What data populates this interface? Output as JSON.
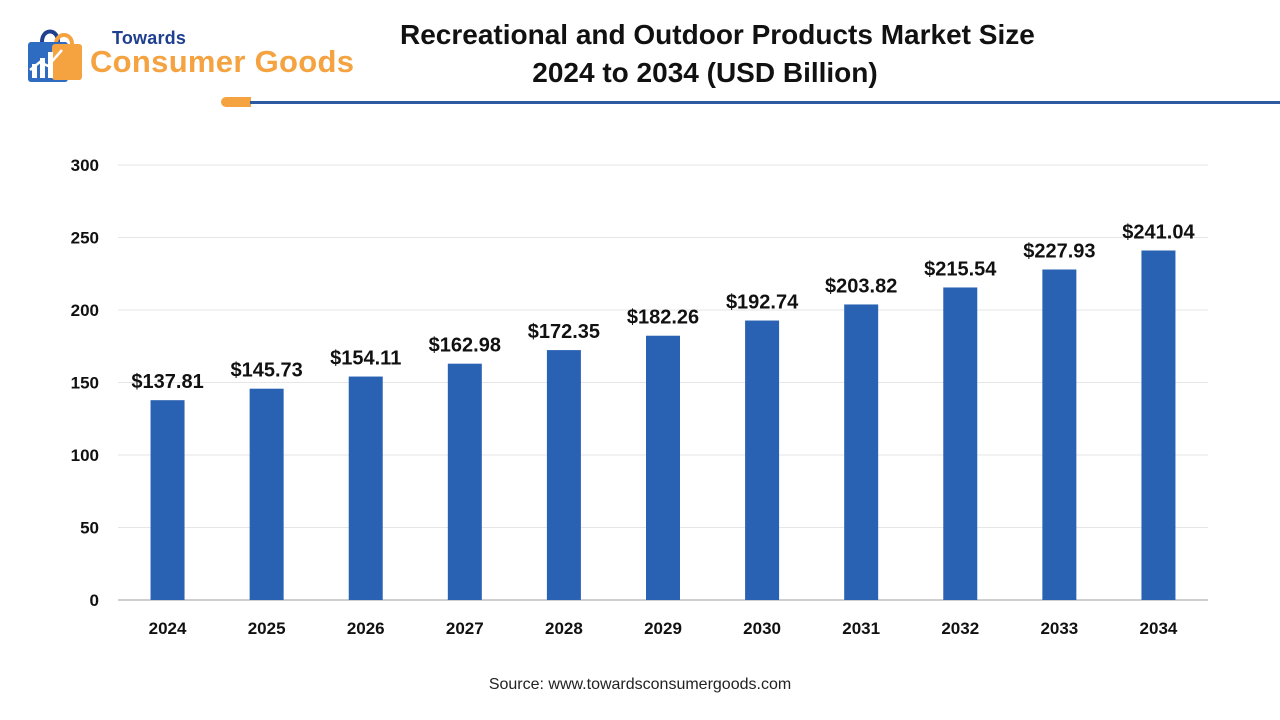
{
  "brand": {
    "top": "Towards",
    "main": "Consumer Goods",
    "icon": "shopping-bag-icon",
    "colors": {
      "blue": "#1f3f8f",
      "orange": "#f4a340",
      "bag": "#2d6cc0"
    }
  },
  "header": {
    "title_line1": "Recreational and Outdoor Products Market Size",
    "title_line2": "2024 to 2034  (USD Billion)",
    "rule_color": "#2c5aa0",
    "tab_color": "#f4a340"
  },
  "chart_data": {
    "type": "bar",
    "title": "Recreational and Outdoor Products Market Size 2024 to 2034  (USD Billion)",
    "xlabel": "",
    "ylabel": "",
    "categories": [
      "2024",
      "2025",
      "2026",
      "2027",
      "2028",
      "2029",
      "2030",
      "2031",
      "2032",
      "2033",
      "2034"
    ],
    "values": [
      137.81,
      145.73,
      154.11,
      162.98,
      172.35,
      182.26,
      192.74,
      203.82,
      215.54,
      227.93,
      241.04
    ],
    "data_labels": [
      "$137.81",
      "$145.73",
      "$154.11",
      "$162.98",
      "$172.35",
      "$182.26",
      "$192.74",
      "$203.82",
      "$215.54",
      "$227.93",
      "$241.04"
    ],
    "ylim": [
      0,
      300
    ],
    "yticks": [
      "0",
      "50",
      "100",
      "150",
      "200",
      "250",
      "300"
    ],
    "grid": true,
    "legend": "none",
    "bar_color": "#2a62b3"
  },
  "footer": {
    "source": "Source: www.towardsconsumergoods.com"
  }
}
